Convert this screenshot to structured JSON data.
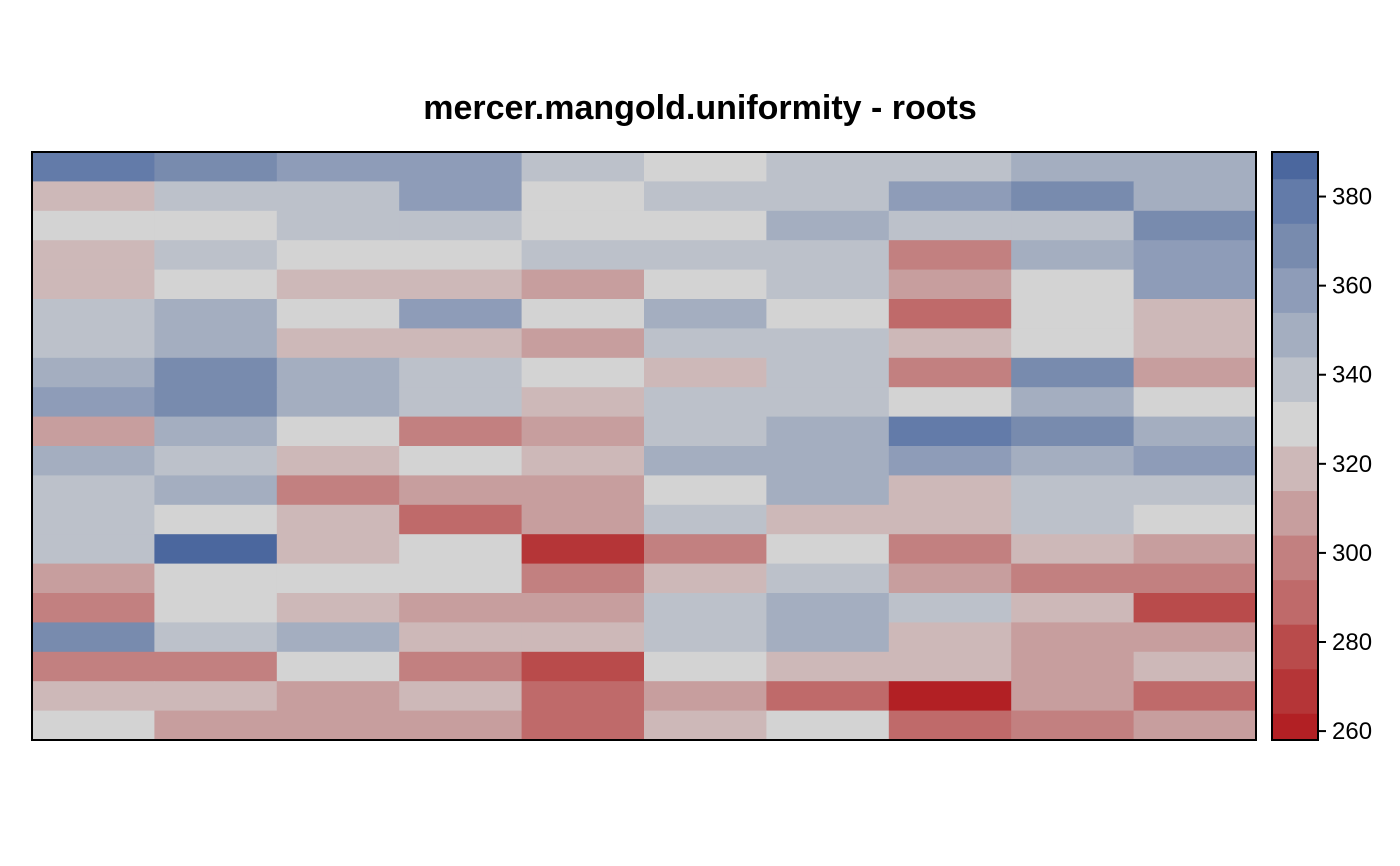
{
  "chart_data": {
    "type": "heatmap",
    "title": "mercer.mangold.uniformity - roots",
    "xlabel": "",
    "ylabel": "",
    "n_rows": 20,
    "n_cols": 10,
    "values": [
      [
        382,
        371,
        361,
        361,
        341,
        331,
        341,
        341,
        350,
        350
      ],
      [
        322,
        341,
        341,
        361,
        331,
        341,
        341,
        361,
        371,
        350
      ],
      [
        331,
        331,
        341,
        341,
        331,
        331,
        350,
        341,
        341,
        371
      ],
      [
        322,
        341,
        331,
        331,
        341,
        341,
        341,
        302,
        350,
        361
      ],
      [
        322,
        331,
        322,
        322,
        312,
        331,
        341,
        312,
        331,
        361
      ],
      [
        341,
        350,
        331,
        361,
        331,
        350,
        331,
        292,
        331,
        322
      ],
      [
        341,
        350,
        322,
        322,
        312,
        341,
        341,
        322,
        331,
        322
      ],
      [
        350,
        371,
        350,
        341,
        331,
        322,
        341,
        302,
        371,
        312
      ],
      [
        361,
        371,
        350,
        341,
        322,
        341,
        341,
        331,
        350,
        331
      ],
      [
        312,
        350,
        331,
        302,
        312,
        341,
        350,
        382,
        371,
        350
      ],
      [
        350,
        341,
        322,
        331,
        322,
        350,
        350,
        361,
        350,
        361
      ],
      [
        341,
        350,
        302,
        312,
        312,
        331,
        350,
        322,
        341,
        341
      ],
      [
        341,
        331,
        322,
        292,
        312,
        341,
        322,
        322,
        341,
        331
      ],
      [
        341,
        390,
        322,
        331,
        270,
        302,
        331,
        302,
        322,
        312
      ],
      [
        312,
        331,
        331,
        331,
        302,
        322,
        341,
        312,
        302,
        302
      ],
      [
        302,
        331,
        322,
        312,
        312,
        341,
        350,
        341,
        322,
        282
      ],
      [
        371,
        341,
        350,
        322,
        322,
        341,
        350,
        322,
        312,
        312
      ],
      [
        302,
        302,
        331,
        302,
        282,
        331,
        322,
        322,
        312,
        322
      ],
      [
        322,
        322,
        312,
        322,
        292,
        312,
        292,
        262,
        312,
        292
      ],
      [
        331,
        312,
        312,
        312,
        292,
        322,
        331,
        292,
        302,
        312
      ]
    ],
    "zlim": [
      258,
      390
    ],
    "colorbar": {
      "ticks": [
        260,
        280,
        300,
        320,
        340,
        360,
        380
      ],
      "position": "right"
    },
    "palette": [
      {
        "min": 258,
        "max": 264,
        "color": "#b22024"
      },
      {
        "min": 264,
        "max": 274,
        "color": "#b53537"
      },
      {
        "min": 274,
        "max": 284,
        "color": "#b94b4b"
      },
      {
        "min": 284,
        "max": 294,
        "color": "#bf6a6a"
      },
      {
        "min": 294,
        "max": 304,
        "color": "#c28080"
      },
      {
        "min": 304,
        "max": 314,
        "color": "#c79e9e"
      },
      {
        "min": 314,
        "max": 324,
        "color": "#cdb8b8"
      },
      {
        "min": 324,
        "max": 334,
        "color": "#d3d3d3"
      },
      {
        "min": 334,
        "max": 344,
        "color": "#bcc1ca"
      },
      {
        "min": 344,
        "max": 354,
        "color": "#a4aec0"
      },
      {
        "min": 354,
        "max": 364,
        "color": "#8e9cb8"
      },
      {
        "min": 364,
        "max": 374,
        "color": "#788bae"
      },
      {
        "min": 374,
        "max": 384,
        "color": "#637ba9"
      },
      {
        "min": 384,
        "max": 390,
        "color": "#4b679e"
      }
    ],
    "grid": false,
    "legend": "right"
  }
}
